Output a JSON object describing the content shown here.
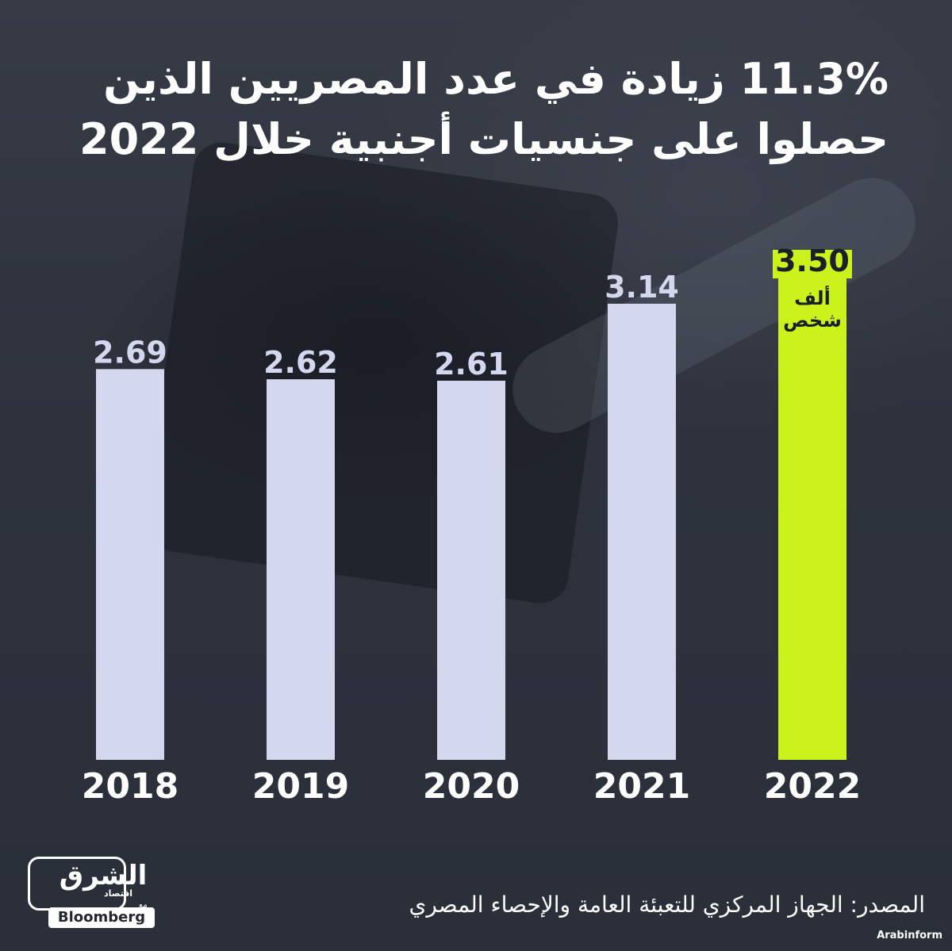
{
  "title_lines": [
    "11.3% زيادة في عدد المصريين الذين",
    "حصلوا على جنسيات أجنبية خلال 2022"
  ],
  "unit_label": "ألف شخص",
  "colors": {
    "bar_default": "#d3d8ef",
    "bar_highlight": "#ccf21e",
    "value_default": "#d3d8ef",
    "value_highlight": "#ccf21e",
    "year_label": "#ffffff"
  },
  "logo": {
    "arabic": "الشرق",
    "sub": "اقتصاد",
    "with": "مع",
    "bloomberg": "Bloomberg"
  },
  "source": "المصدر: الجهاز المركزي للتعبئة العامة والإحصاء المصري",
  "credit": "Arabinform",
  "chart_data": {
    "type": "bar",
    "categories": [
      "2018",
      "2019",
      "2020",
      "2021",
      "2022"
    ],
    "values": [
      2.69,
      2.62,
      2.61,
      3.14,
      3.5
    ],
    "value_labels": [
      "2.69",
      "2.62",
      "2.61",
      "3.14",
      "3.50"
    ],
    "highlight_index": 4,
    "ylim": [
      0,
      3.5
    ],
    "grid": false,
    "legend": "none"
  }
}
